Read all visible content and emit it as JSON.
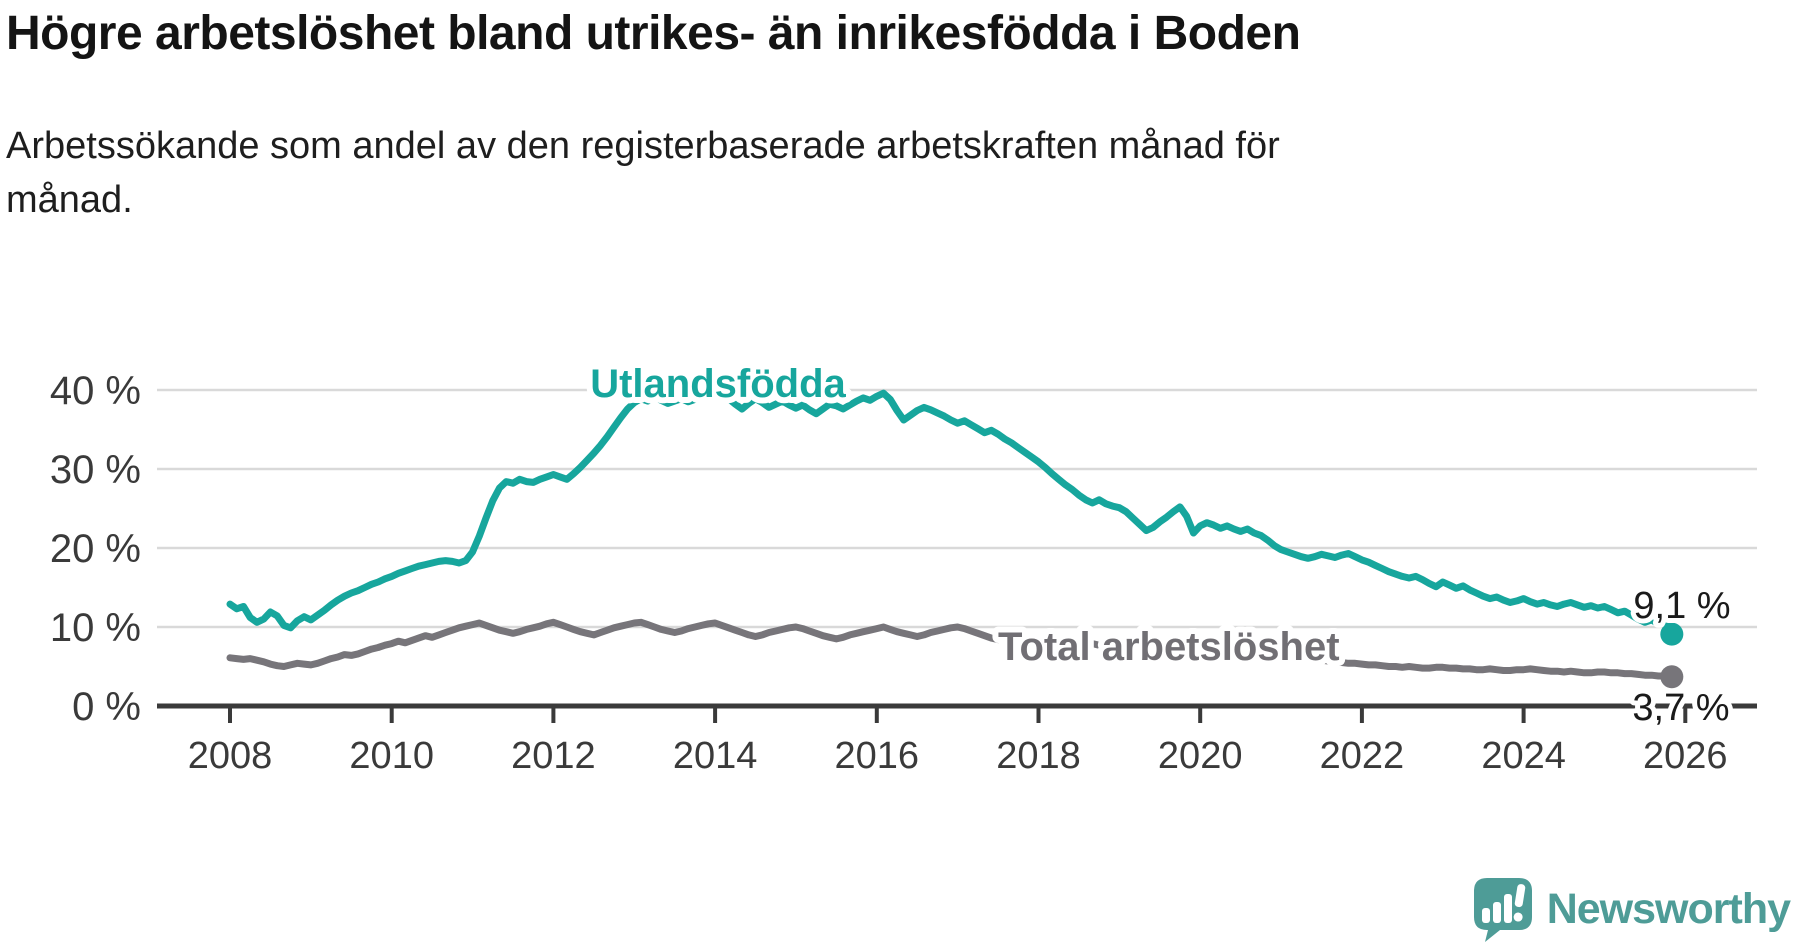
{
  "title": "Högre arbetslöshet bland utrikes- än inrikesfödda i Boden",
  "subtitle": {
    "line1": "Arbetssökande som andel av den registerbaserade arbetskraften månad för",
    "line2": "månad."
  },
  "logo": {
    "brand": "Newsworthy",
    "color": "#4e9c97",
    "icon": "speech-bubble-bar-chart-exclamation"
  },
  "chart_data": {
    "type": "line",
    "title": "Högre arbetslöshet bland utrikes- än inrikesfödda i Boden",
    "subtitle": "Arbetssökande som andel av den registerbaserade arbetskraften månad för månad.",
    "unit": "%",
    "grid": "horizontal",
    "legend_position": "inline-labels",
    "x_start_year": 2008,
    "x_start_month": 1,
    "x_interval": "monthly",
    "x_end_label_years": [
      2008,
      2010,
      2012,
      2014,
      2016,
      2018,
      2020,
      2022,
      2024,
      2026
    ],
    "xlim_years": [
      2007.1,
      2026.9
    ],
    "ylim": [
      0,
      42.5
    ],
    "y_ticks": [
      {
        "value": 0,
        "label": "0 %"
      },
      {
        "value": 10,
        "label": "10 %"
      },
      {
        "value": 20,
        "label": "20 %"
      },
      {
        "value": 30,
        "label": "30 %"
      },
      {
        "value": 40,
        "label": "40 %"
      }
    ],
    "axis_color": "#3a3a3a",
    "grid_color": "#d9d9d9",
    "series": [
      {
        "name": "Utlandsfödda",
        "color": "#17a69d",
        "end_label": "9,1 %",
        "end_value": 9.1,
        "values": [
          12.9,
          12.3,
          12.6,
          11.2,
          10.6,
          11.0,
          11.9,
          11.4,
          10.2,
          9.9,
          10.8,
          11.3,
          10.9,
          11.5,
          12.1,
          12.8,
          13.4,
          13.9,
          14.3,
          14.6,
          15.0,
          15.4,
          15.7,
          16.1,
          16.4,
          16.8,
          17.1,
          17.4,
          17.7,
          17.9,
          18.1,
          18.3,
          18.4,
          18.3,
          18.1,
          18.4,
          19.5,
          21.5,
          23.8,
          26.0,
          27.6,
          28.4,
          28.2,
          28.7,
          28.4,
          28.3,
          28.7,
          29.0,
          29.3,
          29.0,
          28.7,
          29.4,
          30.2,
          31.1,
          32.0,
          33.0,
          34.1,
          35.3,
          36.5,
          37.6,
          38.4,
          38.9,
          38.6,
          39.1,
          38.7,
          38.3,
          38.6,
          38.9,
          38.5,
          38.8,
          39.2,
          38.8,
          39.1,
          39.4,
          38.9,
          38.2,
          37.6,
          38.3,
          38.9,
          38.4,
          37.8,
          38.2,
          38.6,
          38.1,
          37.7,
          38.1,
          37.5,
          37.0,
          37.6,
          38.2,
          38.0,
          37.6,
          38.1,
          38.6,
          39.0,
          38.7,
          39.2,
          39.6,
          38.8,
          37.4,
          36.2,
          36.8,
          37.4,
          37.8,
          37.5,
          37.1,
          36.7,
          36.2,
          35.8,
          36.1,
          35.6,
          35.1,
          34.6,
          34.9,
          34.4,
          33.8,
          33.3,
          32.7,
          32.1,
          31.5,
          30.9,
          30.2,
          29.4,
          28.7,
          28.0,
          27.4,
          26.7,
          26.1,
          25.7,
          26.1,
          25.6,
          25.3,
          25.1,
          24.6,
          23.8,
          23.0,
          22.2,
          22.6,
          23.3,
          23.9,
          24.6,
          25.2,
          24.0,
          21.9,
          22.8,
          23.2,
          22.9,
          22.5,
          22.8,
          22.4,
          22.1,
          22.4,
          21.9,
          21.6,
          21.0,
          20.3,
          19.8,
          19.5,
          19.2,
          18.9,
          18.7,
          18.9,
          19.2,
          19.0,
          18.8,
          19.1,
          19.3,
          18.9,
          18.5,
          18.2,
          17.8,
          17.4,
          17.0,
          16.7,
          16.4,
          16.2,
          16.4,
          16.0,
          15.5,
          15.1,
          15.7,
          15.3,
          14.9,
          15.2,
          14.7,
          14.3,
          13.9,
          13.6,
          13.8,
          13.4,
          13.1,
          13.3,
          13.6,
          13.2,
          12.9,
          13.1,
          12.8,
          12.6,
          12.9,
          13.1,
          12.8,
          12.5,
          12.7,
          12.4,
          12.6,
          12.2,
          11.8,
          12.0,
          11.5,
          11.0,
          10.6,
          10.9,
          10.4,
          10.7,
          9.1
        ]
      },
      {
        "name": "Total arbetslöshet",
        "color": "#77757a",
        "label_color": "#716f74",
        "end_label": "3,7 %",
        "end_value": 3.7,
        "values": [
          6.1,
          6.0,
          5.9,
          6.0,
          5.8,
          5.6,
          5.3,
          5.1,
          5.0,
          5.2,
          5.4,
          5.3,
          5.2,
          5.4,
          5.7,
          6.0,
          6.2,
          6.5,
          6.4,
          6.6,
          6.9,
          7.2,
          7.4,
          7.7,
          7.9,
          8.2,
          8.0,
          8.3,
          8.6,
          8.9,
          8.7,
          9.0,
          9.3,
          9.6,
          9.9,
          10.1,
          10.3,
          10.5,
          10.2,
          9.9,
          9.6,
          9.4,
          9.2,
          9.4,
          9.7,
          9.9,
          10.1,
          10.4,
          10.6,
          10.3,
          10.0,
          9.7,
          9.4,
          9.2,
          9.0,
          9.3,
          9.6,
          9.9,
          10.1,
          10.3,
          10.5,
          10.6,
          10.3,
          10.0,
          9.7,
          9.5,
          9.3,
          9.5,
          9.8,
          10.0,
          10.2,
          10.4,
          10.5,
          10.2,
          9.9,
          9.6,
          9.3,
          9.0,
          8.8,
          9.0,
          9.3,
          9.5,
          9.7,
          9.9,
          10.0,
          9.8,
          9.5,
          9.2,
          8.9,
          8.7,
          8.5,
          8.7,
          9.0,
          9.2,
          9.4,
          9.6,
          9.8,
          10.0,
          9.7,
          9.4,
          9.2,
          9.0,
          8.8,
          9.0,
          9.3,
          9.5,
          9.7,
          9.9,
          10.0,
          9.8,
          9.5,
          9.2,
          8.9,
          8.6,
          8.4,
          8.6,
          8.8,
          8.6,
          8.4,
          8.5,
          8.6,
          8.4,
          8.2,
          8.0,
          7.8,
          7.6,
          7.5,
          7.7,
          7.9,
          7.7,
          7.5,
          7.6,
          7.7,
          7.5,
          7.3,
          7.1,
          7.0,
          6.9,
          6.8,
          7.0,
          7.2,
          7.0,
          6.9,
          7.0,
          7.1,
          7.0,
          7.3,
          7.6,
          7.8,
          7.9,
          7.7,
          7.5,
          7.3,
          7.1,
          6.9,
          6.8,
          6.7,
          6.6,
          6.4,
          6.2,
          6.1,
          5.9,
          5.8,
          5.7,
          5.6,
          5.5,
          5.4,
          5.4,
          5.3,
          5.2,
          5.2,
          5.1,
          5.0,
          5.0,
          4.9,
          5.0,
          4.9,
          4.8,
          4.8,
          4.9,
          4.9,
          4.8,
          4.8,
          4.7,
          4.7,
          4.6,
          4.6,
          4.7,
          4.6,
          4.5,
          4.5,
          4.6,
          4.6,
          4.7,
          4.6,
          4.5,
          4.4,
          4.4,
          4.3,
          4.4,
          4.3,
          4.2,
          4.2,
          4.3,
          4.3,
          4.2,
          4.2,
          4.1,
          4.1,
          4.0,
          3.9,
          3.9,
          3.8,
          3.8,
          3.7
        ]
      }
    ]
  }
}
